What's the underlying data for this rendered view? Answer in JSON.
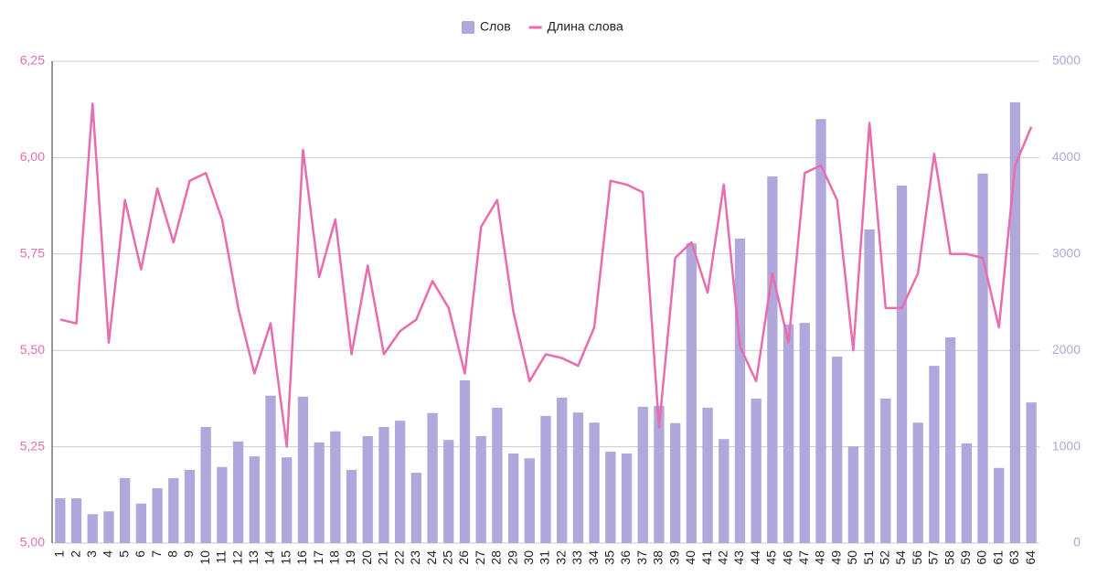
{
  "chart_data": {
    "type": "bar-line",
    "categories": [
      "1",
      "2",
      "3",
      "4",
      "5",
      "6",
      "7",
      "8",
      "9",
      "10",
      "11",
      "12",
      "13",
      "14",
      "15",
      "16",
      "17",
      "18",
      "19",
      "20",
      "21",
      "22",
      "23",
      "24",
      "25",
      "26",
      "27",
      "28",
      "29",
      "30",
      "31",
      "32",
      "33",
      "34",
      "35",
      "36",
      "37",
      "38",
      "39",
      "40",
      "41",
      "42",
      "43",
      "44",
      "45",
      "46",
      "47",
      "48",
      "49",
      "50",
      "51",
      "52",
      "54",
      "56",
      "57",
      "58",
      "59",
      "60",
      "61",
      "63",
      "64"
    ],
    "series": [
      {
        "name": "Слов",
        "type": "bar",
        "axis": "y2",
        "color": "#b0a8dd",
        "values": [
          465,
          465,
          300,
          330,
          675,
          410,
          570,
          675,
          760,
          1205,
          790,
          1055,
          900,
          1530,
          890,
          1520,
          1045,
          1160,
          760,
          1110,
          1205,
          1270,
          730,
          1350,
          1070,
          1690,
          1110,
          1405,
          930,
          880,
          1320,
          1510,
          1355,
          1250,
          950,
          930,
          1415,
          1425,
          1245,
          3110,
          1405,
          1080,
          3160,
          1500,
          3805,
          2270,
          2285,
          4400,
          1935,
          1005,
          3255,
          1500,
          3710,
          1250,
          1840,
          2135,
          1035,
          3835,
          780,
          4575,
          1460
        ]
      },
      {
        "name": "Длина слова",
        "type": "line",
        "axis": "y",
        "color": "#e86cb0",
        "values": [
          5.58,
          5.57,
          6.14,
          5.52,
          5.89,
          5.71,
          5.92,
          5.78,
          5.94,
          5.96,
          5.84,
          5.61,
          5.44,
          5.57,
          5.25,
          6.02,
          5.69,
          5.84,
          5.49,
          5.72,
          5.49,
          5.55,
          5.58,
          5.68,
          5.61,
          5.44,
          5.82,
          5.89,
          5.6,
          5.42,
          5.49,
          5.48,
          5.46,
          5.56,
          5.94,
          5.93,
          5.91,
          5.3,
          5.74,
          5.78,
          5.65,
          5.93,
          5.51,
          5.42,
          5.7,
          5.52,
          5.96,
          5.98,
          5.89,
          5.5,
          6.09,
          5.61,
          5.61,
          5.7,
          6.01,
          5.75,
          5.75,
          5.74,
          5.56,
          5.98,
          6.08
        ]
      }
    ],
    "ylim": [
      5.0,
      6.25
    ],
    "yticks": [
      {
        "value": 5.0,
        "label": "5,00"
      },
      {
        "value": 5.25,
        "label": "5,25"
      },
      {
        "value": 5.5,
        "label": "5,50"
      },
      {
        "value": 5.75,
        "label": "5,75"
      },
      {
        "value": 6.0,
        "label": "6,00"
      },
      {
        "value": 6.25,
        "label": "6,25"
      }
    ],
    "y2lim": [
      0,
      5000
    ],
    "y2ticks": [
      0,
      1000,
      2000,
      3000,
      4000,
      5000
    ],
    "grid": true,
    "legend": "top"
  }
}
